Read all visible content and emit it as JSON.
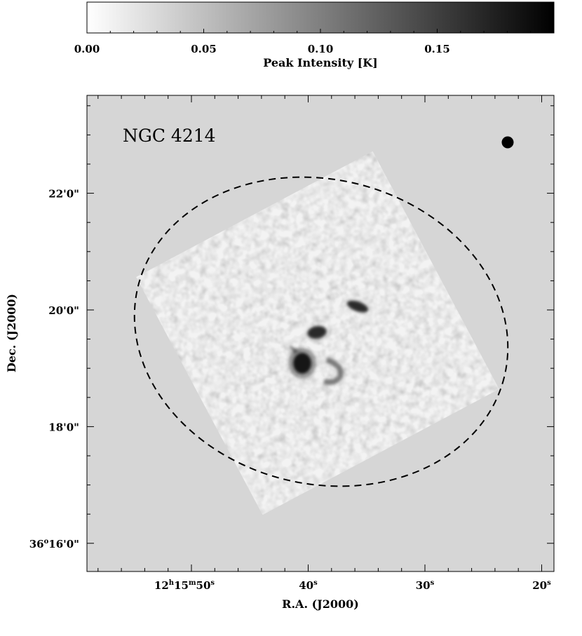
{
  "chart_data": {
    "type": "heatmap",
    "title": "",
    "object_name": "NGC 4214",
    "colorbar": {
      "label": "Peak Intensity [K]",
      "ticks": [
        "0.00",
        "0.05",
        "0.10",
        "0.15"
      ],
      "range": [
        0.0,
        0.2
      ],
      "colormap": "grayscale (white to black)"
    },
    "xlabel": "R.A. (J2000)",
    "ylabel": "Dec. (J2000)",
    "x_ticks": [
      {
        "main": "12",
        "sup1": "h",
        "mid": "15",
        "sup2": "m",
        "end": "50",
        "sup3": "s"
      },
      {
        "main": "40",
        "sup3": "s"
      },
      {
        "main": "30",
        "sup3": "s"
      },
      {
        "main": "20",
        "sup3": "s"
      }
    ],
    "y_ticks": [
      "36°16′0″",
      "18′0″",
      "20′0″",
      "22′0″"
    ],
    "y_tick_display": [
      {
        "main": "36",
        "sup1": "o",
        "rest": "16'0\""
      },
      {
        "main": "18'0\""
      },
      {
        "main": "20'0\""
      },
      {
        "main": "22'0\""
      }
    ],
    "beam": "filled circle (top-right)",
    "ellipse": "dashed",
    "background": "#d6d6d6",
    "sources": [
      {
        "ra_s": 40.4,
        "dec_arcmin": 19.3,
        "peak_K": 0.19
      },
      {
        "ra_s": 39.4,
        "dec_arcmin": 19.8,
        "peak_K": 0.11
      },
      {
        "ra_s": 36.1,
        "dec_arcmin": 20.0,
        "peak_K": 0.1
      },
      {
        "ra_s": 37.7,
        "dec_arcmin": 19.2,
        "peak_K": 0.07
      }
    ]
  }
}
